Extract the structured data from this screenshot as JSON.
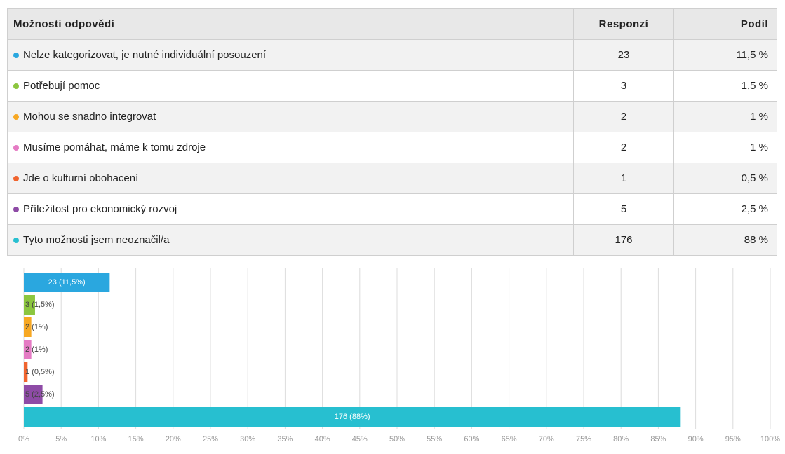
{
  "table": {
    "header": [
      "Možnosti odpovědí",
      "Responzí",
      "Podíl"
    ],
    "rows": [
      [
        "Nelze kategorizovat, je nutné individuální posouzení",
        "23",
        "11,5 %"
      ],
      [
        "Potřebují pomoc",
        "3",
        "1,5 %"
      ],
      [
        "Mohou se snadno integrovat",
        "2",
        "1 %"
      ],
      [
        "Musíme pomáhat, máme k tomu zdroje",
        "2",
        "1 %"
      ],
      [
        "Jde o kulturní obohacení",
        "1",
        "0,5 %"
      ],
      [
        "Příležitost pro ekonomický rozvoj",
        "5",
        "2,5 %"
      ],
      [
        "Tyto možnosti jsem neoznačil/a",
        "176",
        "88 %"
      ]
    ]
  },
  "chart_data": {
    "type": "bar",
    "orientation": "horizontal",
    "values": [
      11.5,
      1.5,
      1,
      1,
      0.5,
      2.5,
      88
    ],
    "value_labels": [
      "23 (11,5%)",
      "3 (1,5%)",
      "2 (1%)",
      "2 (1%)",
      "1 (0,5%)",
      "5 (2,5%)",
      "176 (88%)"
    ],
    "colors": [
      "#2aa7df",
      "#8cc63f",
      "#f7a823",
      "#e57bc4",
      "#f0642e",
      "#8e4ba6",
      "#27bfd0"
    ],
    "xlim": [
      0,
      100
    ],
    "xticks": [
      {
        "value": 0,
        "label": "0%"
      },
      {
        "value": 5,
        "label": "5%"
      },
      {
        "value": 10,
        "label": "10%"
      },
      {
        "value": 15,
        "label": "15%"
      },
      {
        "value": 20,
        "label": "20%"
      },
      {
        "value": 25,
        "label": "25%"
      },
      {
        "value": 30,
        "label": "30%"
      },
      {
        "value": 35,
        "label": "35%"
      },
      {
        "value": 40,
        "label": "40%"
      },
      {
        "value": 45,
        "label": "45%"
      },
      {
        "value": 50,
        "label": "50%"
      },
      {
        "value": 55,
        "label": "55%"
      },
      {
        "value": 60,
        "label": "60%"
      },
      {
        "value": 65,
        "label": "65%"
      },
      {
        "value": 70,
        "label": "70%"
      },
      {
        "value": 75,
        "label": "75%"
      },
      {
        "value": 80,
        "label": "80%"
      },
      {
        "value": 85,
        "label": "85%"
      },
      {
        "value": 90,
        "label": "90%"
      },
      {
        "value": 95,
        "label": "95%"
      },
      {
        "value": 100,
        "label": "100%"
      }
    ],
    "grid": true
  }
}
